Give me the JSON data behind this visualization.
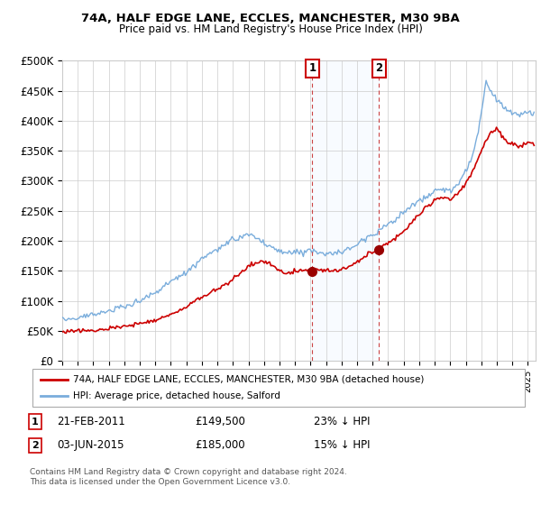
{
  "title1": "74A, HALF EDGE LANE, ECCLES, MANCHESTER, M30 9BA",
  "title2": "Price paid vs. HM Land Registry's House Price Index (HPI)",
  "ylabel_ticks": [
    "£0",
    "£50K",
    "£100K",
    "£150K",
    "£200K",
    "£250K",
    "£300K",
    "£350K",
    "£400K",
    "£450K",
    "£500K"
  ],
  "ytick_values": [
    0,
    50000,
    100000,
    150000,
    200000,
    250000,
    300000,
    350000,
    400000,
    450000,
    500000
  ],
  "xlim_start": 1995.0,
  "xlim_end": 2025.5,
  "ylim": [
    0,
    500000
  ],
  "hpi_color": "#7aaddc",
  "price_color": "#cc0000",
  "shade_color": "#ddeeff",
  "marker1_x": 2011.12,
  "marker1_y": 149500,
  "marker2_x": 2015.42,
  "marker2_y": 185000,
  "legend_line1": "74A, HALF EDGE LANE, ECCLES, MANCHESTER, M30 9BA (detached house)",
  "legend_line2": "HPI: Average price, detached house, Salford",
  "table_row1_num": "1",
  "table_row1_date": "21-FEB-2011",
  "table_row1_price": "£149,500",
  "table_row1_hpi": "23% ↓ HPI",
  "table_row2_num": "2",
  "table_row2_date": "03-JUN-2015",
  "table_row2_price": "£185,000",
  "table_row2_hpi": "15% ↓ HPI",
  "footer": "Contains HM Land Registry data © Crown copyright and database right 2024.\nThis data is licensed under the Open Government Licence v3.0.",
  "background_color": "#ffffff",
  "grid_color": "#cccccc"
}
